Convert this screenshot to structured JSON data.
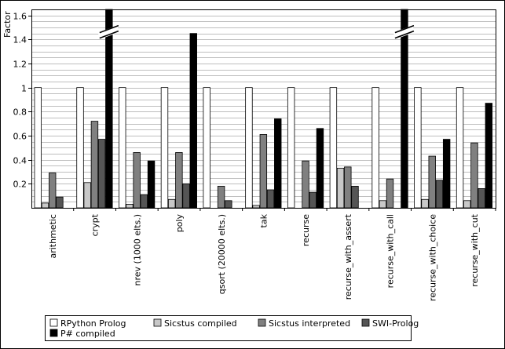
{
  "chart_data": {
    "type": "bar",
    "ylabel": "Factor",
    "xlabel": "",
    "ylim": [
      0,
      1.65
    ],
    "yticks": [
      "0.2",
      "0.4",
      "0.6",
      "0.8",
      "1",
      "1.2",
      "1.4",
      "1.6"
    ],
    "grid": true,
    "legend_position": "bottom",
    "categories": [
      "arithmetic",
      "crypt",
      "nrev (1000 elts.)",
      "poly",
      "qsort (20000 elts.)",
      "tak",
      "recurse",
      "recurse_with_assert",
      "recurse_with_call",
      "recurse_with_choice",
      "recurse_with_cut"
    ],
    "series": [
      {
        "name": "RPython Prolog",
        "color": "#ffffff",
        "values": [
          1,
          1,
          1,
          1,
          1,
          1,
          1,
          1,
          1,
          1,
          1
        ]
      },
      {
        "name": "Sicstus compiled",
        "color": "#c8c8c8",
        "values": [
          0.04,
          0.21,
          0.03,
          0.07,
          0,
          0.02,
          0,
          0.33,
          0.06,
          0.07,
          0.06
        ]
      },
      {
        "name": "Sicstus interpreted",
        "color": "#808080",
        "values": [
          0.29,
          0.72,
          0.46,
          0.46,
          0.18,
          0.61,
          0.39,
          0.34,
          0.24,
          0.43,
          0.54
        ]
      },
      {
        "name": "SWI-Prolog",
        "color": "#555555",
        "values": [
          0.09,
          0.57,
          0.11,
          0.2,
          0.06,
          0.15,
          0.13,
          0.18,
          0,
          0.23,
          0.16
        ]
      },
      {
        "name": "P# compiled",
        "color": "#000000",
        "values": [
          0,
          1.65,
          0.39,
          1.45,
          0,
          0.74,
          0.66,
          0,
          1.65,
          0.57,
          0.87
        ]
      }
    ],
    "broken_bars": [
      {
        "category": "crypt",
        "series": "P# compiled"
      },
      {
        "category": "recurse_with_call",
        "series": "P# compiled"
      }
    ]
  }
}
